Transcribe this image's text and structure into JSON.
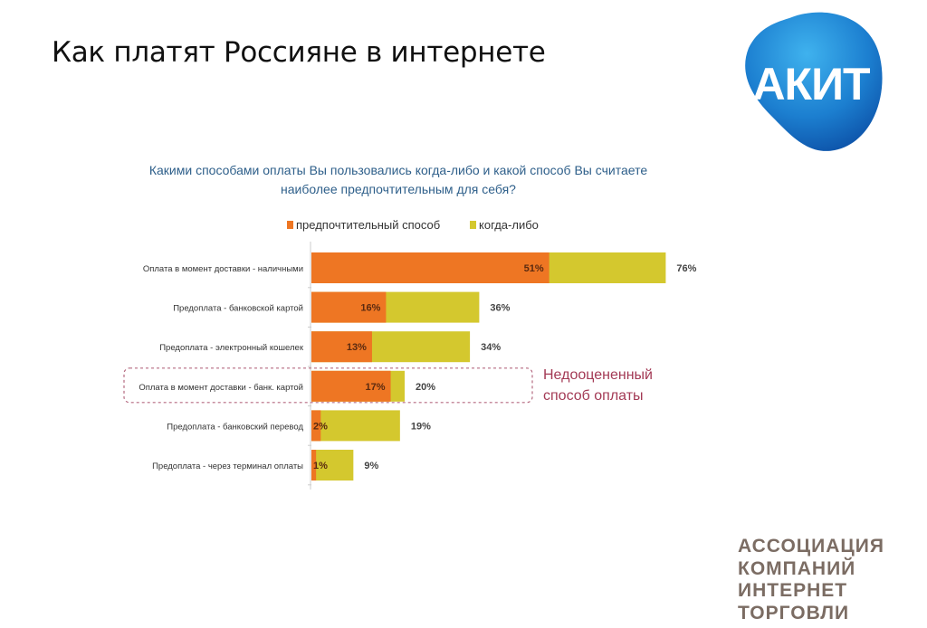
{
  "slide": {
    "title": "Как платят Россияне в интернете",
    "logo_text": "АКИТ",
    "association_lines": [
      "АССОЦИАЦИЯ",
      "КОМПАНИЙ",
      "ИНТЕРНЕТ",
      "ТОРГОВЛИ"
    ],
    "annotation_lines": [
      "Недооцененный",
      "способ оплаты"
    ]
  },
  "chart_data": {
    "type": "bar",
    "orientation": "horizontal",
    "title_lines": [
      "Какими способами оплаты Вы пользовались когда-либо и какой способ Вы считаете",
      "наиболее предпочтительным для себя?"
    ],
    "categories": [
      "Оплата в момент доставки - наличными",
      "Предоплата - банковской картой",
      "Предоплата - электронный кошелек",
      "Оплата в момент доставки - банк. картой",
      "Предоплата - банковский перевод",
      "Предоплата - через терминал оплаты"
    ],
    "series": [
      {
        "name": "предпочтительный способ",
        "color": "#ee7623",
        "values": [
          51,
          16,
          13,
          17,
          2,
          1
        ],
        "labels": [
          "51%",
          "16%",
          "13%",
          "17%",
          "2%",
          "1%"
        ]
      },
      {
        "name": "когда-либо",
        "color": "#d4c82e",
        "values": [
          76,
          36,
          34,
          20,
          19,
          9
        ],
        "labels": [
          "76%",
          "36%",
          "34%",
          "20%",
          "19%",
          "9%"
        ]
      }
    ],
    "highlighted_category": "Оплата в момент доставки - банк. картой",
    "legend": "top",
    "unit": "%"
  }
}
